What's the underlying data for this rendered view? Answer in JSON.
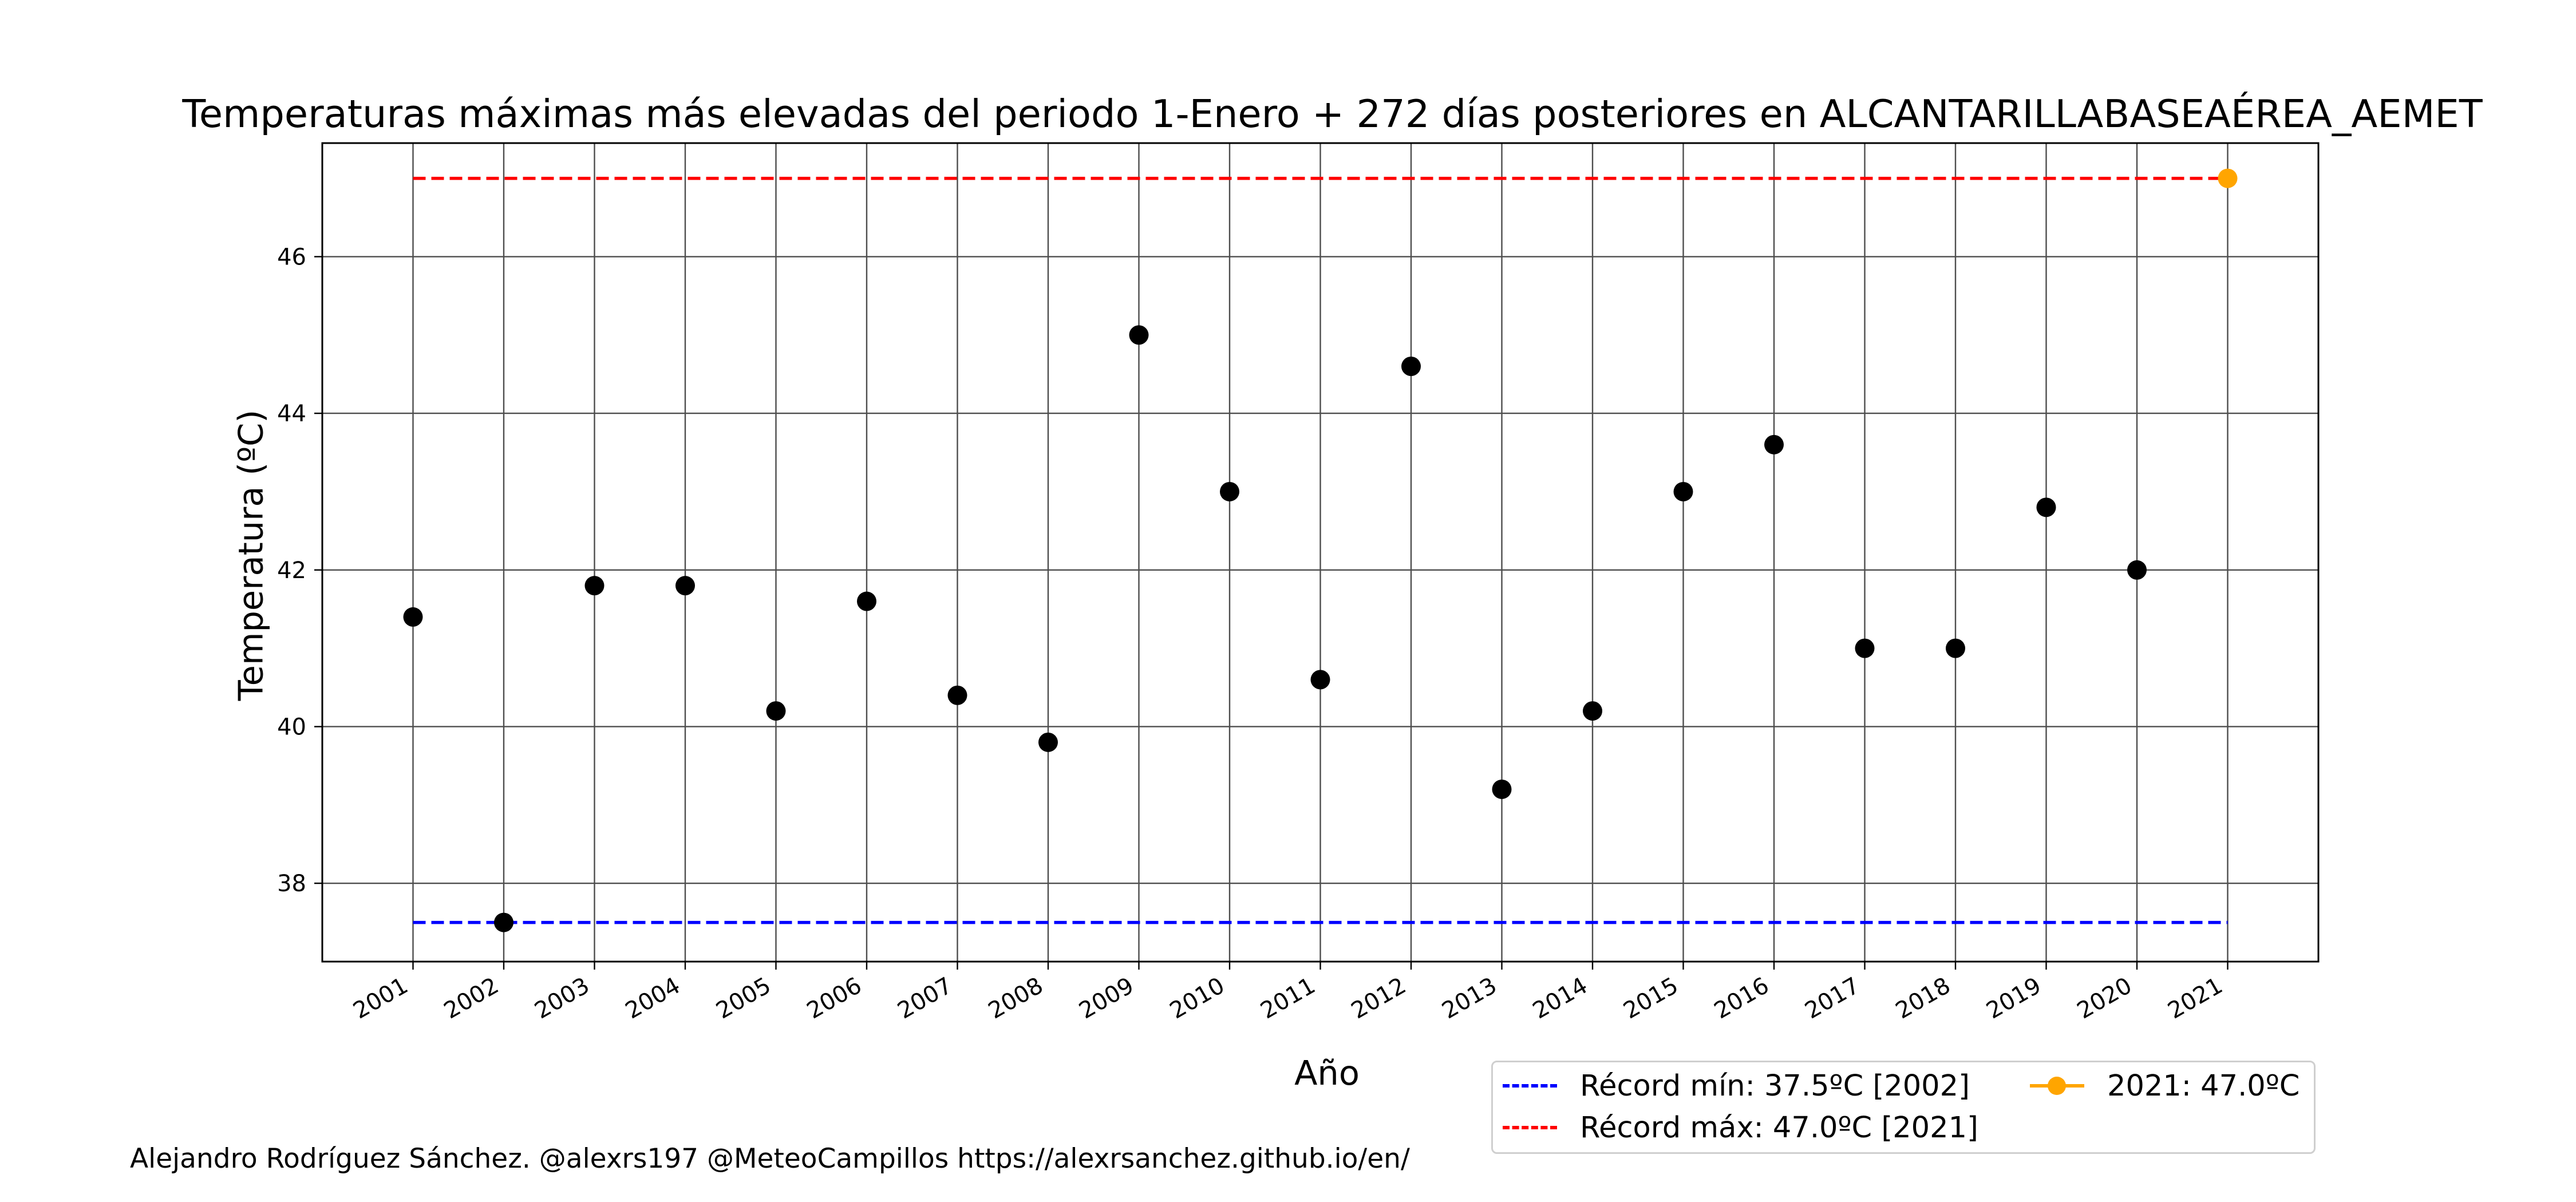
{
  "chart_data": {
    "type": "scatter",
    "title": "Temperaturas máximas más elevadas del periodo 1-Enero + 272 días posteriores en ALCANTARILLABASEAÉREA_AEMET",
    "xlabel": "Año",
    "ylabel": "Temperatura (ºC)",
    "x": [
      2001,
      2002,
      2003,
      2004,
      2005,
      2006,
      2007,
      2008,
      2009,
      2010,
      2011,
      2012,
      2013,
      2014,
      2015,
      2016,
      2017,
      2018,
      2019,
      2020,
      2021
    ],
    "x_tick_labels": [
      "2001",
      "2002",
      "2003",
      "2004",
      "2005",
      "2006",
      "2007",
      "2008",
      "2009",
      "2010",
      "2011",
      "2012",
      "2013",
      "2014",
      "2015",
      "2016",
      "2017",
      "2018",
      "2019",
      "2020",
      "2021"
    ],
    "series": [
      {
        "values": [
          41.4,
          37.5,
          41.8,
          41.8,
          40.2,
          41.6,
          40.4,
          39.8,
          45.0,
          43.0,
          40.6,
          44.6,
          39.2,
          40.2,
          43.0,
          43.6,
          41.0,
          41.0,
          42.8,
          42.0,
          null
        ],
        "color": "#000000"
      },
      {
        "name": "2021: 47.0ºC",
        "x": [
          2021
        ],
        "values": [
          47.0
        ],
        "color": "#ffa500"
      }
    ],
    "reference_lines": [
      {
        "name": "Récord mín: 37.5ºC [2002]",
        "value": 37.5,
        "color": "#0000ff",
        "style": "dashed"
      },
      {
        "name": "Récord máx: 47.0ºC [2021]",
        "value": 47.0,
        "color": "#ff0000",
        "style": "dashed"
      }
    ],
    "y_ticks": [
      38,
      40,
      42,
      44,
      46
    ],
    "xlim": [
      2000,
      2022.0
    ],
    "ylim": [
      37.0,
      47.45
    ],
    "grid": true,
    "legend_position": "bottom-right"
  },
  "legend": {
    "min_label": "Récord mín: 37.5ºC [2002]",
    "max_label": "Récord máx: 47.0ºC [2021]",
    "current_label": "2021: 47.0ºC"
  },
  "footer": {
    "credit": "Alejandro Rodríguez Sánchez. @alexrs197 @MeteoCampillos   https://alexrsanchez.github.io/en/"
  },
  "colors": {
    "min_line": "#0000ff",
    "max_line": "#ff0000",
    "current_point": "#ffa500",
    "points": "#000000",
    "grid": "#4d4d4d"
  }
}
